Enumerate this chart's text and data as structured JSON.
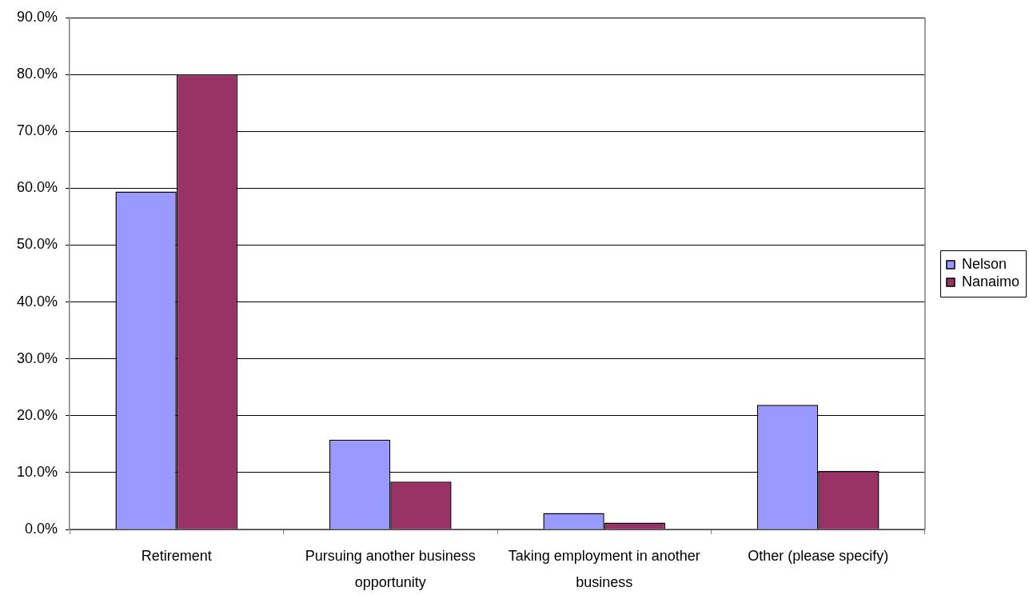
{
  "chart_data": {
    "type": "bar",
    "categories": [
      "Retirement",
      "Pursuing another business opportunity",
      "Taking employment in another business",
      "Other (please specify)"
    ],
    "series": [
      {
        "name": "Nelson",
        "color": "#9999ff",
        "values": [
          59.4,
          15.8,
          2.9,
          21.9
        ]
      },
      {
        "name": "Nanaimo",
        "color": "#993366",
        "values": [
          80.0,
          8.4,
          1.2,
          10.3
        ]
      }
    ],
    "ylim": [
      0,
      90
    ],
    "yticks": [
      {
        "value": 0,
        "label": "0.0%"
      },
      {
        "value": 10,
        "label": "10.0%"
      },
      {
        "value": 20,
        "label": "20.0%"
      },
      {
        "value": 30,
        "label": "30.0%"
      },
      {
        "value": 40,
        "label": "40.0%"
      },
      {
        "value": 50,
        "label": "50.0%"
      },
      {
        "value": 60,
        "label": "60.0%"
      },
      {
        "value": 70,
        "label": "70.0%"
      },
      {
        "value": 80,
        "label": "80.0%"
      },
      {
        "value": 90,
        "label": "90.0%"
      }
    ],
    "grid": "y",
    "legend": "right"
  }
}
